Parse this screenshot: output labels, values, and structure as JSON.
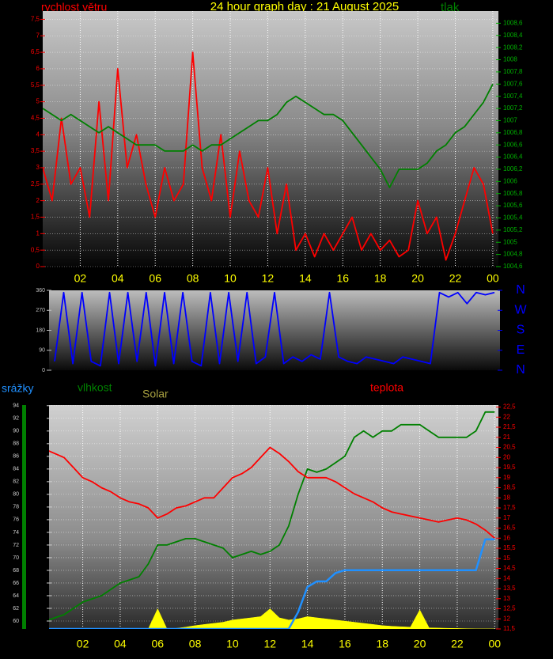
{
  "chart_data": [
    {
      "type": "line",
      "title": "24 hour graph day : 21 August 2025",
      "grid": true,
      "x": [
        0,
        0.5,
        1,
        1.5,
        2,
        2.5,
        3,
        3.5,
        4,
        4.5,
        5,
        5.5,
        6,
        6.5,
        7,
        7.5,
        8,
        8.5,
        9,
        9.5,
        10,
        10.5,
        11,
        11.5,
        12,
        12.5,
        13,
        13.5,
        14,
        14.5,
        15,
        15.5,
        16,
        16.5,
        17,
        17.5,
        18,
        18.5,
        19,
        19.5,
        20,
        20.5,
        21,
        21.5,
        22,
        22.5,
        23,
        23.5,
        24
      ],
      "xlim": [
        0,
        24.3
      ],
      "xticks": [
        {
          "value": 2,
          "label": "02"
        },
        {
          "value": 4,
          "label": "04"
        },
        {
          "value": 6,
          "label": "06"
        },
        {
          "value": 8,
          "label": "08"
        },
        10,
        12,
        14,
        16,
        18,
        20,
        22,
        {
          "value": 24,
          "label": "00"
        }
      ],
      "ylim": [
        0,
        7.75
      ],
      "yticks": [
        0,
        {
          "value": 0.5,
          "label": "0,5"
        },
        1,
        {
          "value": 1.5,
          "label": "1,5"
        },
        2,
        {
          "value": 2.5,
          "label": "2,5"
        },
        3,
        {
          "value": 3.5,
          "label": "3,5"
        },
        4,
        {
          "value": 4.5,
          "label": "4,5"
        },
        5,
        {
          "value": 5.5,
          "label": "5,5"
        },
        6,
        {
          "value": 6.5,
          "label": "6,5"
        },
        7,
        {
          "value": 7.5,
          "label": "7,5"
        }
      ],
      "y2lim": [
        1004.6,
        1008.8
      ],
      "y2ticks": [
        {
          "value": 1004.6,
          "label": "1004,6"
        },
        {
          "value": 1004.8,
          "label": "1004,8"
        },
        1005,
        {
          "value": 1005.2,
          "label": "1005,2"
        },
        {
          "value": 1005.4,
          "label": "1005,4"
        },
        {
          "value": 1005.6,
          "label": "1005,6"
        },
        {
          "value": 1005.8,
          "label": "1005,8"
        },
        1006,
        {
          "value": 1006.2,
          "label": "1006,2"
        },
        {
          "value": 1006.4,
          "label": "1006,4"
        },
        {
          "value": 1006.6,
          "label": "1006,6"
        },
        {
          "value": 1006.8,
          "label": "1006,8"
        },
        1007,
        {
          "value": 1007.2,
          "label": "1007,2"
        },
        {
          "value": 1007.4,
          "label": "1007,4"
        },
        {
          "value": 1007.6,
          "label": "1007,6"
        },
        {
          "value": 1007.8,
          "label": "1007,8"
        },
        1008,
        {
          "value": 1008.2,
          "label": "1008,2"
        },
        {
          "value": 1008.4,
          "label": "1008,4"
        },
        {
          "value": 1008.6,
          "label": "1008,6"
        }
      ],
      "series": [
        {
          "name": "rychlost větru",
          "color": "#ff0000",
          "axis": "y",
          "values": [
            3,
            2,
            4.5,
            2.5,
            3,
            1.5,
            5,
            2,
            6,
            3,
            4,
            2.5,
            1.5,
            3,
            2,
            2.5,
            6.5,
            3,
            2,
            4,
            1.5,
            3.5,
            2,
            1.5,
            3,
            1,
            2.5,
            0.5,
            1,
            0.3,
            1,
            0.5,
            1,
            1.5,
            0.5,
            1,
            0.5,
            0.8,
            0.3,
            0.5,
            2,
            1,
            1.5,
            0.2,
            1,
            2,
            3,
            2.5,
            1
          ]
        },
        {
          "name": "tlak",
          "color": "#008000",
          "axis": "y2",
          "values": [
            1007.2,
            1007.1,
            1007.0,
            1007.1,
            1007.0,
            1006.9,
            1006.8,
            1006.9,
            1006.8,
            1006.7,
            1006.6,
            1006.6,
            1006.6,
            1006.5,
            1006.5,
            1006.5,
            1006.6,
            1006.5,
            1006.6,
            1006.6,
            1006.7,
            1006.8,
            1006.9,
            1007.0,
            1007.0,
            1007.1,
            1007.3,
            1007.4,
            1007.3,
            1007.2,
            1007.1,
            1007.1,
            1007.0,
            1006.8,
            1006.6,
            1006.4,
            1006.2,
            1005.9,
            1006.2,
            1006.2,
            1006.2,
            1006.3,
            1006.5,
            1006.6,
            1006.8,
            1006.9,
            1007.1,
            1007.3,
            1007.6
          ]
        }
      ]
    },
    {
      "type": "line",
      "grid": false,
      "x": [
        0,
        0.5,
        1,
        1.5,
        2,
        2.5,
        3,
        3.5,
        4,
        4.5,
        5,
        5.5,
        6,
        6.5,
        7,
        7.5,
        8,
        8.5,
        9,
        9.5,
        10,
        10.5,
        11,
        11.5,
        12,
        12.5,
        13,
        13.5,
        14,
        14.5,
        15,
        15.5,
        16,
        16.5,
        17,
        17.5,
        18,
        18.5,
        19,
        19.5,
        20,
        20.5,
        21,
        21.5,
        22,
        22.5,
        23,
        23.5,
        24
      ],
      "xlim": [
        -0.3,
        24.3
      ],
      "ylim": [
        0,
        360
      ],
      "yticks": [
        0,
        90,
        180,
        270,
        360
      ],
      "y2lim": [
        0,
        360
      ],
      "y2ticks": [
        {
          "value": 360,
          "label": "N"
        },
        {
          "value": 270,
          "label": "W"
        },
        {
          "value": 180,
          "label": "S"
        },
        {
          "value": 90,
          "label": "E"
        },
        {
          "value": 0,
          "label": "N"
        }
      ],
      "series": [
        {
          "color": "#0000ff",
          "axis": "y",
          "values": [
            40,
            350,
            30,
            350,
            40,
            20,
            350,
            30,
            350,
            40,
            350,
            20,
            350,
            30,
            350,
            40,
            20,
            350,
            30,
            350,
            40,
            350,
            30,
            60,
            350,
            30,
            60,
            40,
            70,
            50,
            350,
            60,
            40,
            30,
            60,
            50,
            40,
            30,
            60,
            50,
            40,
            30,
            350,
            330,
            350,
            300,
            350,
            340,
            350
          ]
        }
      ]
    },
    {
      "type": "line",
      "grid": true,
      "x": [
        0,
        0.5,
        1,
        1.5,
        2,
        2.5,
        3,
        3.5,
        4,
        4.5,
        5,
        5.5,
        6,
        6.5,
        7,
        7.5,
        8,
        8.5,
        9,
        9.5,
        10,
        10.5,
        11,
        11.5,
        12,
        12.5,
        13,
        13.5,
        14,
        14.5,
        15,
        15.5,
        16,
        16.5,
        17,
        17.5,
        18,
        18.5,
        19,
        19.5,
        20,
        20.5,
        21,
        21.5,
        22,
        22.5,
        23,
        23.5,
        24
      ],
      "xlim": [
        0.2,
        24.2
      ],
      "xticks": [
        {
          "value": 2,
          "label": "02"
        },
        {
          "value": 4,
          "label": "04"
        },
        {
          "value": 6,
          "label": "06"
        },
        {
          "value": 8,
          "label": "08"
        },
        10,
        12,
        14,
        16,
        18,
        20,
        22,
        {
          "value": 24,
          "label": "00"
        }
      ],
      "ylim": [
        58.75,
        94.1
      ],
      "yticks": [
        60,
        62,
        64,
        66,
        68,
        70,
        72,
        74,
        76,
        78,
        80,
        82,
        84,
        86,
        88,
        90,
        92,
        94
      ],
      "y2lim": [
        11.5,
        22.6
      ],
      "y2ticks": [
        {
          "value": 11.5,
          "label": "11,5"
        },
        12,
        {
          "value": 12.5,
          "label": "12,5"
        },
        13,
        {
          "value": 13.5,
          "label": "13,5"
        },
        14,
        {
          "value": 14.5,
          "label": "14,5"
        },
        15,
        {
          "value": 15.5,
          "label": "15,5"
        },
        16,
        {
          "value": 16.5,
          "label": "16,5"
        },
        17,
        {
          "value": 17.5,
          "label": "17,5"
        },
        18,
        {
          "value": 18.5,
          "label": "18,5"
        },
        19,
        {
          "value": 19.5,
          "label": "19,5"
        },
        20,
        {
          "value": 20.5,
          "label": "20,5"
        },
        21,
        {
          "value": 21.5,
          "label": "21,5"
        },
        22,
        {
          "value": 22.5,
          "label": "22,5"
        }
      ],
      "y3lim": [
        0,
        4
      ],
      "y4lim": [
        0,
        1000
      ],
      "series": [
        {
          "name": "Solar",
          "color": "#ffff00",
          "axis": "y4",
          "type": "area",
          "values": [
            0,
            0,
            0,
            0,
            0,
            0,
            0,
            0,
            0,
            0,
            0,
            0,
            90,
            0,
            3,
            8,
            15,
            20,
            25,
            30,
            40,
            45,
            50,
            55,
            90,
            50,
            40,
            45,
            55,
            50,
            45,
            40,
            35,
            30,
            25,
            20,
            15,
            12,
            10,
            8,
            85,
            5,
            4,
            3,
            2,
            1,
            0,
            0,
            0
          ]
        },
        {
          "name": "vlhkost",
          "color": "#008000",
          "axis": "y",
          "values": [
            60,
            60.5,
            61,
            62,
            63,
            63.5,
            64,
            65,
            66,
            66.5,
            67,
            69,
            72,
            72,
            72.5,
            73,
            73,
            72.5,
            72,
            71.5,
            70,
            70.5,
            71,
            70.5,
            71,
            72,
            75,
            80,
            84,
            83.5,
            84,
            85,
            86,
            89,
            90,
            89,
            90,
            90,
            91,
            91,
            91,
            90,
            89,
            89,
            89,
            89,
            90,
            93,
            93
          ]
        },
        {
          "name": "teplota",
          "color": "#ff0000",
          "axis": "y2",
          "values": [
            20.4,
            20.2,
            20,
            19.5,
            19,
            18.8,
            18.5,
            18.3,
            18,
            17.8,
            17.7,
            17.5,
            17,
            17.2,
            17.5,
            17.6,
            17.8,
            18,
            18,
            18.5,
            19,
            19.2,
            19.5,
            20,
            20.5,
            20.2,
            19.8,
            19.3,
            19,
            19,
            19,
            18.8,
            18.5,
            18.2,
            18,
            17.8,
            17.5,
            17.3,
            17.2,
            17.1,
            17,
            16.9,
            16.8,
            16.9,
            17,
            16.9,
            16.7,
            16.4,
            16
          ]
        },
        {
          "name": "srážky",
          "color": "#2090ff",
          "axis": "y3",
          "values": [
            0,
            0,
            0,
            0,
            0,
            0,
            0,
            0,
            0,
            0,
            0,
            0,
            0,
            0,
            0,
            0,
            0,
            0,
            0,
            0,
            0,
            0,
            0,
            0,
            0,
            0,
            0,
            0.3,
            0.75,
            0.85,
            0.85,
            1.0,
            1.05,
            1.05,
            1.05,
            1.05,
            1.05,
            1.05,
            1.05,
            1.05,
            1.05,
            1.05,
            1.05,
            1.05,
            1.05,
            1.05,
            1.05,
            1.6,
            1.6
          ]
        }
      ]
    }
  ]
}
